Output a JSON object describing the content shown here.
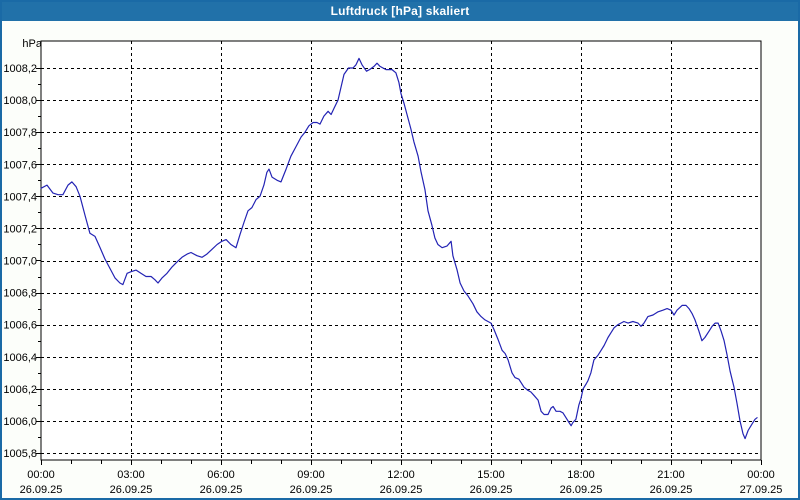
{
  "window": {
    "title": "Luftdruck [hPa] skaliert"
  },
  "colors": {
    "titlebar": "#2171a9",
    "window_border": "#1a6aa6",
    "background": "#fcfefa",
    "plot_background": "#ffffff",
    "grid": "#000000",
    "line": "#2323b4"
  },
  "chart_data": {
    "type": "line",
    "title": "Luftdruck [hPa] skaliert",
    "ylabel": "hPa",
    "xlabel": "",
    "grid": "dashed",
    "legend_position": "none",
    "ylim": [
      1005.8,
      1008.2
    ],
    "y_tick_step": 0.2,
    "y_minor_tick_step": 0.1,
    "x_tick_interval_hours": 3,
    "x_minor_tick_interval_hours": 1,
    "y_ticks": [
      "1005,8",
      "1006,0",
      "1006,2",
      "1006,4",
      "1006,6",
      "1006,8",
      "1007,0",
      "1007,2",
      "1007,4",
      "1007,6",
      "1007,8",
      "1008,0",
      "1008,2"
    ],
    "x_ticks": [
      {
        "time": "00:00",
        "date": "26.09.25"
      },
      {
        "time": "03:00",
        "date": "26.09.25"
      },
      {
        "time": "06:00",
        "date": "26.09.25"
      },
      {
        "time": "09:00",
        "date": "26.09.25"
      },
      {
        "time": "12:00",
        "date": "26.09.25"
      },
      {
        "time": "15:00",
        "date": "26.09.25"
      },
      {
        "time": "18:00",
        "date": "26.09.25"
      },
      {
        "time": "21:00",
        "date": "26.09.25"
      },
      {
        "time": "00:00",
        "date": "27.09.25"
      }
    ],
    "series": [
      {
        "name": "Luftdruck",
        "color": "#2323b4",
        "points": [
          [
            0.0,
            1007.45
          ],
          [
            0.2,
            1007.47
          ],
          [
            0.4,
            1007.42
          ],
          [
            0.57,
            1007.41
          ],
          [
            0.73,
            1007.41
          ],
          [
            0.9,
            1007.47
          ],
          [
            1.03,
            1007.49
          ],
          [
            1.17,
            1007.46
          ],
          [
            1.3,
            1007.4
          ],
          [
            1.47,
            1007.28
          ],
          [
            1.63,
            1007.17
          ],
          [
            1.8,
            1007.15
          ],
          [
            1.97,
            1007.08
          ],
          [
            2.13,
            1007.01
          ],
          [
            2.3,
            1006.95
          ],
          [
            2.47,
            1006.89
          ],
          [
            2.63,
            1006.86
          ],
          [
            2.73,
            1006.85
          ],
          [
            2.87,
            1006.92
          ],
          [
            3.0,
            1006.93
          ],
          [
            3.17,
            1006.94
          ],
          [
            3.33,
            1006.92
          ],
          [
            3.5,
            1006.9
          ],
          [
            3.67,
            1006.9
          ],
          [
            3.8,
            1006.88
          ],
          [
            3.9,
            1006.86
          ],
          [
            4.03,
            1006.89
          ],
          [
            4.2,
            1006.92
          ],
          [
            4.37,
            1006.96
          ],
          [
            4.53,
            1006.99
          ],
          [
            4.7,
            1007.02
          ],
          [
            4.87,
            1007.04
          ],
          [
            5.0,
            1007.05
          ],
          [
            5.2,
            1007.03
          ],
          [
            5.37,
            1007.02
          ],
          [
            5.53,
            1007.04
          ],
          [
            5.7,
            1007.07
          ],
          [
            5.87,
            1007.1
          ],
          [
            6.03,
            1007.12
          ],
          [
            6.17,
            1007.13
          ],
          [
            6.33,
            1007.1
          ],
          [
            6.5,
            1007.08
          ],
          [
            6.63,
            1007.16
          ],
          [
            6.77,
            1007.24
          ],
          [
            6.9,
            1007.31
          ],
          [
            7.03,
            1007.33
          ],
          [
            7.17,
            1007.38
          ],
          [
            7.3,
            1007.4
          ],
          [
            7.43,
            1007.47
          ],
          [
            7.53,
            1007.55
          ],
          [
            7.6,
            1007.57
          ],
          [
            7.7,
            1007.52
          ],
          [
            7.87,
            1007.5
          ],
          [
            8.0,
            1007.49
          ],
          [
            8.17,
            1007.57
          ],
          [
            8.33,
            1007.65
          ],
          [
            8.5,
            1007.71
          ],
          [
            8.67,
            1007.77
          ],
          [
            8.8,
            1007.8
          ],
          [
            8.93,
            1007.84
          ],
          [
            9.07,
            1007.86
          ],
          [
            9.2,
            1007.86
          ],
          [
            9.3,
            1007.85
          ],
          [
            9.43,
            1007.9
          ],
          [
            9.57,
            1007.93
          ],
          [
            9.67,
            1007.91
          ],
          [
            9.77,
            1007.95
          ],
          [
            9.9,
            1008.0
          ],
          [
            10.0,
            1008.08
          ],
          [
            10.1,
            1008.16
          ],
          [
            10.25,
            1008.2
          ],
          [
            10.4,
            1008.2
          ],
          [
            10.5,
            1008.22
          ],
          [
            10.6,
            1008.26
          ],
          [
            10.7,
            1008.22
          ],
          [
            10.85,
            1008.18
          ],
          [
            10.95,
            1008.19
          ],
          [
            11.1,
            1008.21
          ],
          [
            11.2,
            1008.23
          ],
          [
            11.3,
            1008.21
          ],
          [
            11.5,
            1008.19
          ],
          [
            11.7,
            1008.19
          ],
          [
            11.83,
            1008.17
          ],
          [
            11.93,
            1008.11
          ],
          [
            12.0,
            1008.04
          ],
          [
            12.1,
            1007.98
          ],
          [
            12.2,
            1007.91
          ],
          [
            12.33,
            1007.82
          ],
          [
            12.43,
            1007.74
          ],
          [
            12.57,
            1007.65
          ],
          [
            12.67,
            1007.55
          ],
          [
            12.8,
            1007.44
          ],
          [
            12.9,
            1007.31
          ],
          [
            13.03,
            1007.22
          ],
          [
            13.13,
            1007.14
          ],
          [
            13.23,
            1007.1
          ],
          [
            13.37,
            1007.08
          ],
          [
            13.53,
            1007.09
          ],
          [
            13.67,
            1007.12
          ],
          [
            13.73,
            1007.03
          ],
          [
            13.87,
            1006.94
          ],
          [
            13.97,
            1006.86
          ],
          [
            14.1,
            1006.81
          ],
          [
            14.23,
            1006.78
          ],
          [
            14.4,
            1006.73
          ],
          [
            14.53,
            1006.68
          ],
          [
            14.67,
            1006.65
          ],
          [
            14.8,
            1006.63
          ],
          [
            14.9,
            1006.62
          ],
          [
            15.0,
            1006.61
          ],
          [
            15.1,
            1006.57
          ],
          [
            15.23,
            1006.51
          ],
          [
            15.37,
            1006.44
          ],
          [
            15.47,
            1006.42
          ],
          [
            15.57,
            1006.38
          ],
          [
            15.7,
            1006.3
          ],
          [
            15.8,
            1006.27
          ],
          [
            15.93,
            1006.26
          ],
          [
            16.1,
            1006.21
          ],
          [
            16.23,
            1006.19
          ],
          [
            16.33,
            1006.18
          ],
          [
            16.43,
            1006.16
          ],
          [
            16.57,
            1006.13
          ],
          [
            16.67,
            1006.06
          ],
          [
            16.77,
            1006.04
          ],
          [
            16.9,
            1006.04
          ],
          [
            17.0,
            1006.08
          ],
          [
            17.07,
            1006.09
          ],
          [
            17.17,
            1006.06
          ],
          [
            17.3,
            1006.06
          ],
          [
            17.4,
            1006.05
          ],
          [
            17.5,
            1006.02
          ],
          [
            17.6,
            1005.99
          ],
          [
            17.67,
            1005.97
          ],
          [
            17.73,
            1005.99
          ],
          [
            17.83,
            1006.01
          ],
          [
            17.93,
            1006.1
          ],
          [
            18.0,
            1006.14
          ],
          [
            18.07,
            1006.2
          ],
          [
            18.17,
            1006.23
          ],
          [
            18.23,
            1006.25
          ],
          [
            18.33,
            1006.3
          ],
          [
            18.43,
            1006.38
          ],
          [
            18.57,
            1006.41
          ],
          [
            18.67,
            1006.44
          ],
          [
            18.77,
            1006.47
          ],
          [
            18.9,
            1006.52
          ],
          [
            19.0,
            1006.55
          ],
          [
            19.1,
            1006.58
          ],
          [
            19.23,
            1006.6
          ],
          [
            19.33,
            1006.61
          ],
          [
            19.43,
            1006.62
          ],
          [
            19.57,
            1006.61
          ],
          [
            19.73,
            1006.62
          ],
          [
            19.9,
            1006.61
          ],
          [
            20.0,
            1006.59
          ],
          [
            20.1,
            1006.61
          ],
          [
            20.23,
            1006.65
          ],
          [
            20.4,
            1006.66
          ],
          [
            20.57,
            1006.68
          ],
          [
            20.73,
            1006.69
          ],
          [
            20.87,
            1006.7
          ],
          [
            21.0,
            1006.69
          ],
          [
            21.1,
            1006.66
          ],
          [
            21.2,
            1006.69
          ],
          [
            21.37,
            1006.72
          ],
          [
            21.5,
            1006.72
          ],
          [
            21.6,
            1006.7
          ],
          [
            21.7,
            1006.67
          ],
          [
            21.8,
            1006.63
          ],
          [
            21.93,
            1006.56
          ],
          [
            22.03,
            1006.5
          ],
          [
            22.13,
            1006.52
          ],
          [
            22.27,
            1006.56
          ],
          [
            22.37,
            1006.59
          ],
          [
            22.47,
            1006.61
          ],
          [
            22.57,
            1006.61
          ],
          [
            22.67,
            1006.56
          ],
          [
            22.77,
            1006.5
          ],
          [
            22.87,
            1006.41
          ],
          [
            22.97,
            1006.31
          ],
          [
            23.1,
            1006.21
          ],
          [
            23.2,
            1006.11
          ],
          [
            23.3,
            1006.0
          ],
          [
            23.4,
            1005.92
          ],
          [
            23.47,
            1005.89
          ],
          [
            23.57,
            1005.94
          ],
          [
            23.7,
            1005.98
          ],
          [
            23.8,
            1006.01
          ],
          [
            23.87,
            1006.02
          ]
        ]
      }
    ]
  }
}
